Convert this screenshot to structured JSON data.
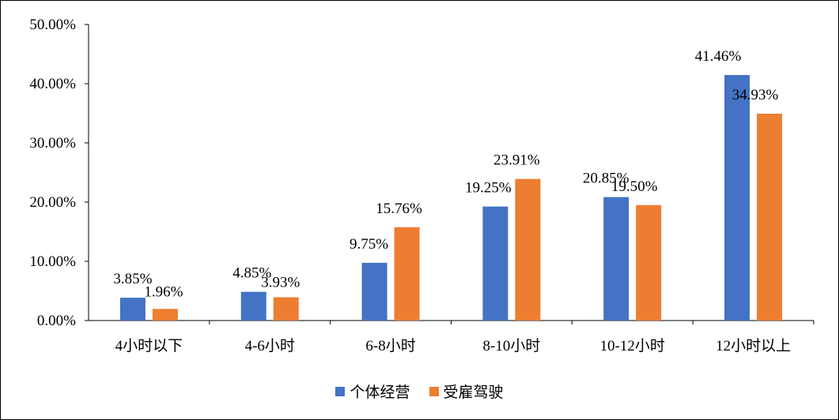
{
  "chart_data": {
    "type": "bar",
    "categories": [
      "4小时以下",
      "4-6小时",
      "6-8小时",
      "8-10小时",
      "10-12小时",
      "12小时以上"
    ],
    "series": [
      {
        "name": "个体经营",
        "values": [
          3.85,
          4.85,
          9.75,
          19.25,
          20.85,
          41.46
        ],
        "labels": [
          "3.85%",
          "4.85%",
          "9.75%",
          "19.25%",
          "20.85%",
          "41.46%"
        ],
        "color": "#4472C4"
      },
      {
        "name": "受雇驾驶",
        "values": [
          1.96,
          3.93,
          15.76,
          23.91,
          19.5,
          34.93
        ],
        "labels": [
          "1.96%",
          "3.93%",
          "15.76%",
          "23.91%",
          "19.50%",
          "34.93%"
        ],
        "color": "#ED7D31"
      }
    ],
    "ylim": [
      0,
      50
    ],
    "yticks": [
      "0.00%",
      "10.00%",
      "20.00%",
      "30.00%",
      "40.00%",
      "50.00%"
    ],
    "title": "",
    "xlabel": "",
    "ylabel": "",
    "legend": "bottom"
  }
}
